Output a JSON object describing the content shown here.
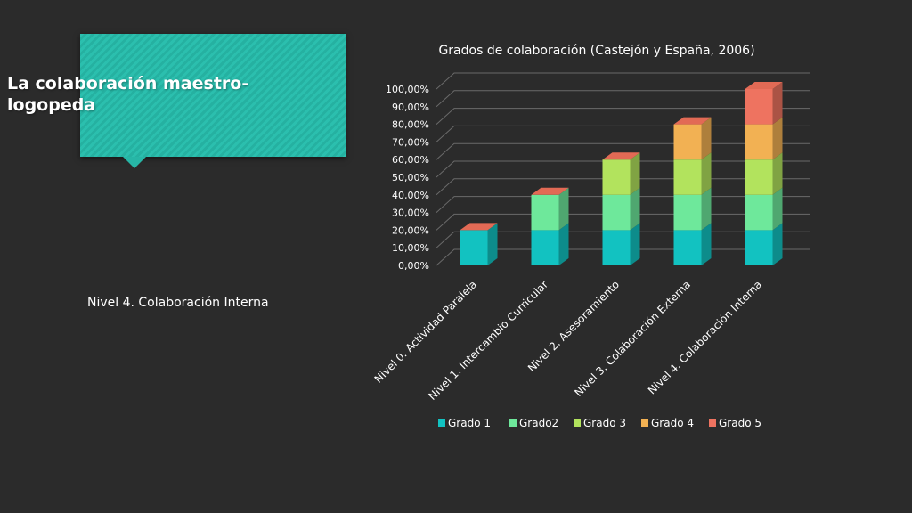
{
  "slide": {
    "title": "La colaboración maestro-logopeda",
    "subtitle": "Nivel 4. Colaboración Interna"
  },
  "chart_data": {
    "type": "bar",
    "stacked": true,
    "three_d": true,
    "title": "Grados de colaboración (Castejón y España, 2006)",
    "categories": [
      "Nivel 0. Actividad Paralela",
      "Nivel 1. Intercambio Curricular",
      "Nivel 2. Asesoramiento",
      "Nivel 3. Colaboración Externa",
      "Nivel 4. Colaboración Interna"
    ],
    "series": [
      {
        "name": "Grado 1",
        "color": "#12c2c1",
        "values": [
          0.2,
          0.2,
          0.2,
          0.2,
          0.2
        ]
      },
      {
        "name": "Grado2",
        "color": "#6ee89b",
        "values": [
          0,
          0.2,
          0.2,
          0.2,
          0.2
        ]
      },
      {
        "name": "Grado 3",
        "color": "#b2e35d",
        "values": [
          0,
          0,
          0.2,
          0.2,
          0.2
        ]
      },
      {
        "name": "Grado 4",
        "color": "#f2b153",
        "values": [
          0,
          0,
          0,
          0.2,
          0.2
        ]
      },
      {
        "name": "Grado 5",
        "color": "#ee7360",
        "values": [
          0,
          0,
          0,
          0,
          0.2
        ]
      }
    ],
    "ylim": [
      0,
      1
    ],
    "y_ticks": [
      "0,00%",
      "10,00%",
      "20,00%",
      "30,00%",
      "40,00%",
      "50,00%",
      "60,00%",
      "70,00%",
      "80,00%",
      "90,00%",
      "100,00%"
    ],
    "grid": true,
    "legend_position": "bottom"
  }
}
